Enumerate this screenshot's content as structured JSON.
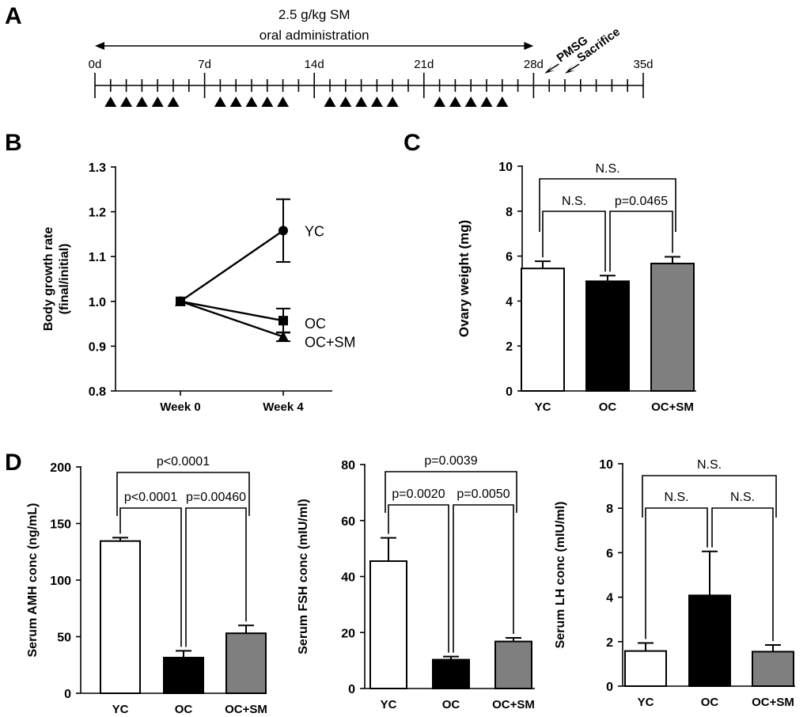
{
  "chart_data": [
    {
      "panel": "A",
      "type": "timeline",
      "treatment_label_line1": "2.5 g/kg SM",
      "treatment_label_line2": "oral administration",
      "range_days": [
        0,
        35
      ],
      "ticks": [
        0,
        1,
        2,
        3,
        4,
        5,
        6,
        7,
        8,
        9,
        10,
        11,
        12,
        13,
        14,
        15,
        16,
        17,
        18,
        19,
        20,
        21,
        22,
        23,
        24,
        25,
        26,
        27,
        28,
        29,
        30,
        31,
        32,
        33,
        34,
        35
      ],
      "major_ticks": [
        0,
        7,
        14,
        21,
        28,
        35
      ],
      "day_labels": [
        "0d",
        "7d",
        "14d",
        "21d",
        "28d",
        "35d"
      ],
      "dosing_days": [
        1,
        2,
        3,
        4,
        5,
        8,
        9,
        10,
        11,
        12,
        15,
        16,
        17,
        18,
        19,
        22,
        23,
        24,
        25,
        26
      ],
      "treatment_span": [
        0,
        28
      ],
      "events": [
        {
          "label": "PMSG",
          "day": 28.7
        },
        {
          "label": "Sacrifice",
          "day": 30
        }
      ]
    },
    {
      "panel": "B",
      "type": "line",
      "categories": [
        "Week 0",
        "Week 4"
      ],
      "ylabel_line1": "Body growth rate",
      "ylabel_line2": "(final/initial)",
      "ylim": [
        0.8,
        1.3
      ],
      "yticks": [
        0.8,
        0.9,
        1.0,
        1.1,
        1.2,
        1.3
      ],
      "ytick_labels": [
        "0.8",
        "0.9",
        "1.0",
        "1.1",
        "1.2",
        "1.3"
      ],
      "series": [
        {
          "name": "YC",
          "marker": "circle",
          "values": [
            1.0,
            1.158
          ],
          "errors": [
            0,
            0.07
          ]
        },
        {
          "name": "OC",
          "marker": "square",
          "values": [
            1.0,
            0.957
          ],
          "errors": [
            0,
            0.027
          ]
        },
        {
          "name": "OC+SM",
          "marker": "triangle",
          "values": [
            1.0,
            0.921
          ],
          "errors": [
            0,
            0.01
          ]
        }
      ]
    },
    {
      "panel": "C",
      "type": "bar",
      "categories": [
        "YC",
        "OC",
        "OC+SM"
      ],
      "values": [
        5.45,
        4.88,
        5.67
      ],
      "errors": [
        0.32,
        0.25,
        0.3
      ],
      "colors": [
        "#ffffff",
        "#000000",
        "#7f7f7f"
      ],
      "ylabel": "Ovary weight (mg)",
      "ylim": [
        0,
        10
      ],
      "yticks": [
        0,
        2,
        4,
        6,
        8,
        10
      ],
      "ytick_labels": [
        "0",
        "2",
        "4",
        "6",
        "8",
        "10"
      ],
      "comparisons": [
        {
          "from": 0,
          "to": 1,
          "label": "N.S."
        },
        {
          "from": 1,
          "to": 2,
          "label": "p=0.0465"
        },
        {
          "from": 0,
          "to": 2,
          "label": "N.S."
        }
      ]
    },
    {
      "panel": "D1",
      "type": "bar",
      "categories": [
        "YC",
        "OC",
        "OC+SM"
      ],
      "values": [
        134.5,
        31.5,
        53
      ],
      "errors": [
        3,
        6,
        7
      ],
      "colors": [
        "#ffffff",
        "#000000",
        "#7f7f7f"
      ],
      "ylabel": "Serum AMH conc (ng/mL)",
      "ylim": [
        0,
        200
      ],
      "yticks": [
        0,
        50,
        100,
        150,
        200
      ],
      "ytick_labels": [
        "0",
        "50",
        "100",
        "150",
        "200"
      ],
      "comparisons": [
        {
          "from": 0,
          "to": 1,
          "label": "p<0.0001"
        },
        {
          "from": 1,
          "to": 2,
          "label": "p=0.00460"
        },
        {
          "from": 0,
          "to": 2,
          "label": "p<0.0001"
        }
      ]
    },
    {
      "panel": "D2",
      "type": "bar",
      "categories": [
        "YC",
        "OC",
        "OC+SM"
      ],
      "values": [
        45.5,
        10.3,
        16.8
      ],
      "errors": [
        8.3,
        1.1,
        1.3
      ],
      "colors": [
        "#ffffff",
        "#000000",
        "#7f7f7f"
      ],
      "ylabel": "Serum FSH  conc  (mIU/ml)",
      "ylim": [
        0,
        80
      ],
      "yticks": [
        0,
        20,
        40,
        60,
        80
      ],
      "ytick_labels": [
        "0",
        "20",
        "40",
        "60",
        "80"
      ],
      "comparisons": [
        {
          "from": 0,
          "to": 1,
          "label": "p=0.0020"
        },
        {
          "from": 1,
          "to": 2,
          "label": "p=0.0050"
        },
        {
          "from": 0,
          "to": 2,
          "label": "p=0.0039"
        }
      ]
    },
    {
      "panel": "D3",
      "type": "bar",
      "categories": [
        "YC",
        "OC",
        "OC+SM"
      ],
      "values": [
        1.58,
        4.08,
        1.55
      ],
      "errors": [
        0.36,
        1.98,
        0.3
      ],
      "colors": [
        "#ffffff",
        "#000000",
        "#7f7f7f"
      ],
      "ylabel": "Serum LH  conc  (mIU/ml)",
      "ylim": [
        0,
        10
      ],
      "yticks": [
        0,
        2,
        4,
        6,
        8,
        10
      ],
      "ytick_labels": [
        "0",
        "2",
        "4",
        "6",
        "8",
        "10"
      ],
      "comparisons": [
        {
          "from": 0,
          "to": 1,
          "label": "N.S."
        },
        {
          "from": 1,
          "to": 2,
          "label": "N.S."
        },
        {
          "from": 0,
          "to": 2,
          "label": "N.S."
        }
      ]
    }
  ],
  "panel_letters": [
    "A",
    "B",
    "C",
    "D"
  ]
}
